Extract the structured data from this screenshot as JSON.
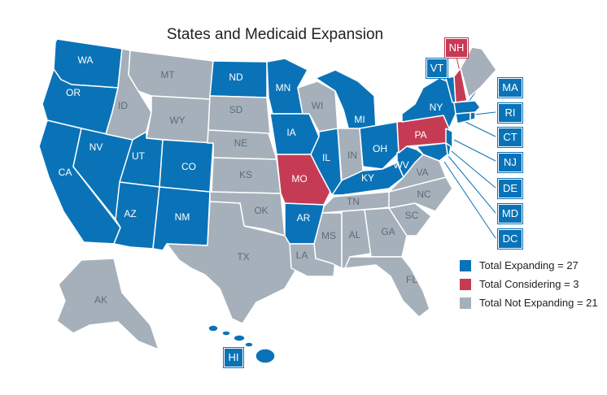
{
  "title": "States and Medicaid Expansion",
  "colors": {
    "expanding": "#0a73b7",
    "considering": "#c63b54",
    "not_expanding": "#a6b0ba"
  },
  "legend": [
    {
      "key": "expanding",
      "label": "Total Expanding = 27"
    },
    {
      "key": "considering",
      "label": "Total Considering = 3"
    },
    {
      "key": "not_expanding",
      "label": "Total Not Expanding = 21"
    }
  ],
  "states": {
    "WA": "expanding",
    "OR": "expanding",
    "CA": "expanding",
    "NV": "expanding",
    "UT": "expanding",
    "AZ": "expanding",
    "CO": "expanding",
    "NM": "expanding",
    "ND": "expanding",
    "MN": "expanding",
    "IA": "expanding",
    "AR": "expanding",
    "IL": "expanding",
    "MI": "expanding",
    "OH": "expanding",
    "KY": "expanding",
    "WV": "expanding",
    "NY": "expanding",
    "VT": "expanding",
    "MA": "expanding",
    "RI": "expanding",
    "CT": "expanding",
    "NJ": "expanding",
    "DE": "expanding",
    "MD": "expanding",
    "DC": "expanding",
    "HI": "expanding",
    "MO": "considering",
    "PA": "considering",
    "NH": "considering",
    "MT": "not_expanding",
    "ID": "not_expanding",
    "WY": "not_expanding",
    "SD": "not_expanding",
    "NE": "not_expanding",
    "KS": "not_expanding",
    "OK": "not_expanding",
    "TX": "not_expanding",
    "WI": "not_expanding",
    "IN": "not_expanding",
    "TN": "not_expanding",
    "MS": "not_expanding",
    "AL": "not_expanding",
    "GA": "not_expanding",
    "FL": "not_expanding",
    "SC": "not_expanding",
    "NC": "not_expanding",
    "VA": "not_expanding",
    "LA": "not_expanding",
    "ME": "not_expanding",
    "AK": "not_expanding"
  },
  "labels": {
    "WA": "WA",
    "OR": "OR",
    "CA": "CA",
    "NV": "NV",
    "UT": "UT",
    "AZ": "AZ",
    "CO": "CO",
    "NM": "NM",
    "ND": "ND",
    "MN": "MN",
    "IA": "IA",
    "AR": "AR",
    "IL": "IL",
    "MI": "MI",
    "OH": "OH",
    "KY": "KY",
    "WV": "WV",
    "NY": "NY",
    "MO": "MO",
    "PA": "PA",
    "MT": "MT",
    "ID": "ID",
    "WY": "WY",
    "SD": "SD",
    "NE": "NE",
    "KS": "KS",
    "OK": "OK",
    "TX": "TX",
    "WI": "WI",
    "IN": "IN",
    "TN": "TN",
    "MS": "MS",
    "AL": "AL",
    "GA": "GA",
    "FL": "FL",
    "SC": "SC",
    "NC": "NC",
    "VA": "VA",
    "LA": "LA",
    "AK": "AK"
  },
  "tags": {
    "NH": "NH",
    "VT": "VT",
    "MA": "MA",
    "RI": "RI",
    "CT": "CT",
    "NJ": "NJ",
    "DE": "DE",
    "MD": "MD",
    "DC": "DC",
    "HI": "HI"
  }
}
